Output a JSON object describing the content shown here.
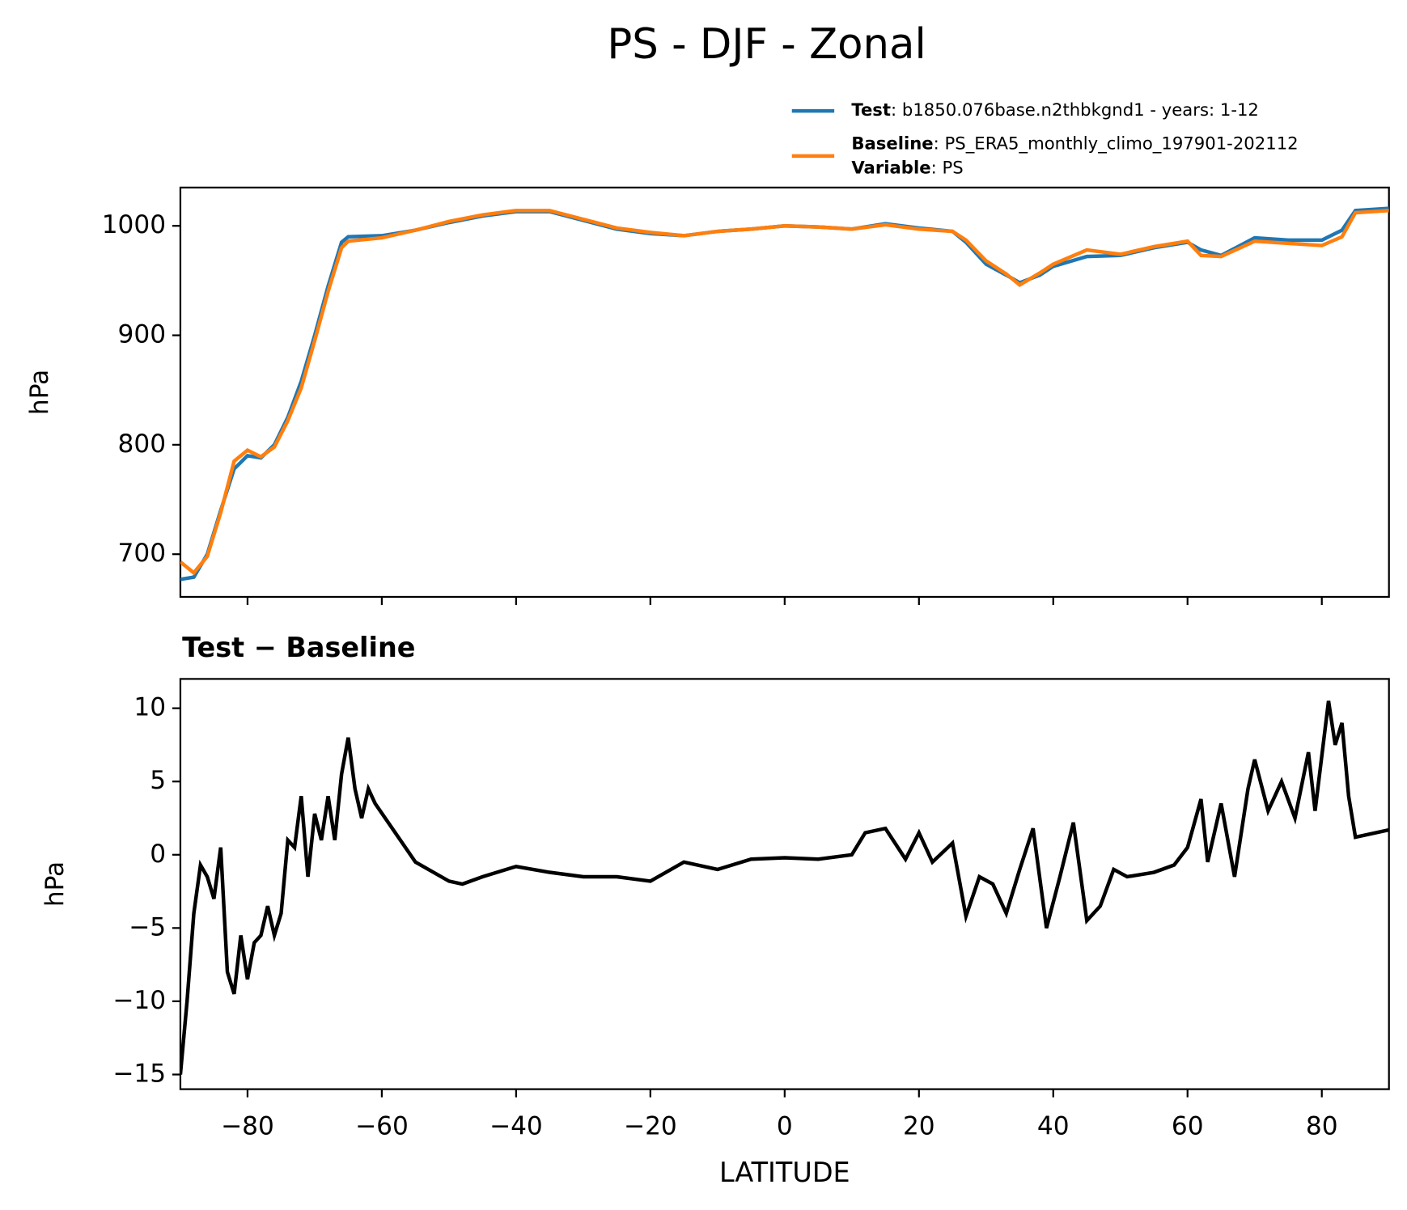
{
  "chart_data": [
    {
      "type": "line",
      "title": "PS - DJF - Zonal",
      "ylabel": "hPa",
      "x": [
        -90,
        -88,
        -86,
        -84,
        -82,
        -80,
        -78,
        -76,
        -74,
        -72,
        -70,
        -68,
        -66,
        -65,
        -60,
        -55,
        -50,
        -45,
        -40,
        -35,
        -30,
        -25,
        -20,
        -15,
        -10,
        -5,
        0,
        5,
        10,
        15,
        20,
        25,
        27,
        30,
        33,
        35,
        38,
        40,
        45,
        50,
        55,
        60,
        62,
        65,
        70,
        75,
        80,
        83,
        85,
        90
      ],
      "series": [
        {
          "name": "Test",
          "description": ": b1850.076base.n2thbkgnd1 - years: 1-12",
          "color": "#1f77b4",
          "values": [
            677,
            679,
            700,
            740,
            778,
            790,
            788,
            800,
            825,
            858,
            900,
            945,
            985,
            990,
            991,
            996,
            1003,
            1009,
            1013,
            1013,
            1005,
            997,
            993,
            991,
            995,
            997,
            1000,
            999,
            997,
            1002,
            998,
            995,
            985,
            965,
            955,
            948,
            955,
            963,
            972,
            973,
            980,
            985,
            978,
            973,
            989,
            987,
            987,
            996,
            1014,
            1016
          ]
        },
        {
          "name": "Baseline",
          "description": ": PS_ERA5_monthly_climo_197901-202112",
          "color": "#ff7f0e",
          "values": [
            693,
            683,
            698,
            738,
            785,
            795,
            789,
            798,
            822,
            852,
            895,
            940,
            980,
            986,
            989,
            996,
            1004,
            1010,
            1014,
            1014,
            1006,
            998,
            994,
            991,
            995,
            997,
            1000,
            999,
            997,
            1001,
            997,
            995,
            987,
            968,
            956,
            946,
            957,
            965,
            978,
            974,
            981,
            986,
            973,
            972,
            986,
            984,
            982,
            990,
            1012,
            1014
          ]
        }
      ],
      "legend_extra": {
        "name": "Variable",
        "description": ": PS"
      },
      "xlim": [
        -90,
        90
      ],
      "ylim": [
        661,
        1035
      ],
      "yticks": [
        700,
        800,
        900,
        1000
      ]
    },
    {
      "type": "line",
      "title": "Test − Baseline",
      "ylabel": "hPa",
      "xlabel": "LATITUDE",
      "x": [
        -90,
        -89,
        -88,
        -87,
        -86,
        -85,
        -84,
        -83,
        -82,
        -81,
        -80,
        -79,
        -78,
        -77,
        -76,
        -75,
        -74,
        -73,
        -72,
        -71,
        -70,
        -69,
        -68,
        -67,
        -66,
        -65,
        -64,
        -63,
        -62,
        -61,
        -55,
        -50,
        -48,
        -45,
        -40,
        -35,
        -30,
        -25,
        -20,
        -15,
        -10,
        -5,
        0,
        5,
        10,
        12,
        15,
        18,
        20,
        22,
        25,
        27,
        29,
        31,
        33,
        35,
        37,
        39,
        41,
        43,
        45,
        47,
        49,
        51,
        55,
        58,
        60,
        62,
        63,
        65,
        67,
        69,
        70,
        72,
        74,
        76,
        78,
        79,
        81,
        82,
        83,
        84,
        85,
        90
      ],
      "series": [
        {
          "color": "#000000",
          "values": [
            -15,
            -10,
            -4,
            -0.7,
            -1.5,
            -3,
            0.5,
            -8,
            -9.5,
            -5.5,
            -8.5,
            -6,
            -5.5,
            -3.5,
            -5.5,
            -4,
            1,
            0.5,
            4,
            -1.5,
            2.8,
            1,
            4,
            1,
            5.5,
            8,
            4.5,
            2.5,
            4.5,
            3.5,
            -0.5,
            -1.8,
            -2,
            -1.5,
            -0.8,
            -1.2,
            -1.5,
            -1.5,
            -1.8,
            -0.5,
            -1,
            -0.3,
            -0.2,
            -0.3,
            0,
            1.5,
            1.8,
            -0.3,
            1.5,
            -0.5,
            0.8,
            -4.2,
            -1.5,
            -2,
            -4,
            -1,
            1.8,
            -5,
            -1.5,
            2.2,
            -4.5,
            -3.5,
            -1,
            -1.5,
            -1.2,
            -0.7,
            0.5,
            3.8,
            -0.5,
            3.5,
            -1.5,
            4.5,
            6.5,
            3,
            5,
            2.5,
            7,
            3,
            10.5,
            7.5,
            9,
            4,
            1.2,
            1.7
          ]
        }
      ],
      "xlim": [
        -90,
        90
      ],
      "ylim": [
        -16,
        12
      ],
      "xticks": [
        {
          "value": -80,
          "label": "−80"
        },
        {
          "value": -60,
          "label": "−60"
        },
        {
          "value": -40,
          "label": "−40"
        },
        {
          "value": -20,
          "label": "−20"
        },
        0,
        20,
        40,
        60,
        80
      ],
      "yticks": [
        {
          "value": -15,
          "label": "−15"
        },
        {
          "value": -10,
          "label": "−10"
        },
        {
          "value": -5,
          "label": "−5"
        },
        0,
        5,
        10
      ]
    }
  ]
}
